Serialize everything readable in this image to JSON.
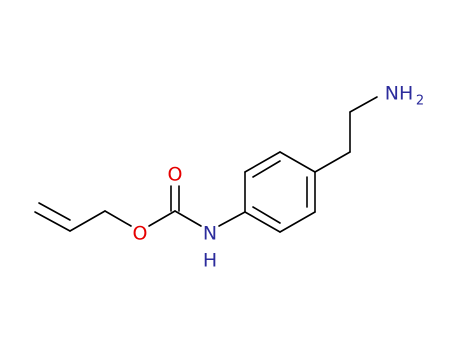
{
  "molecule": {
    "carbonyl_oxygen": "O",
    "ester_oxygen": "O",
    "amide_nitrogen": "N",
    "amide_hydrogen": "H",
    "amine": "NH",
    "amine_subscript": "2"
  }
}
